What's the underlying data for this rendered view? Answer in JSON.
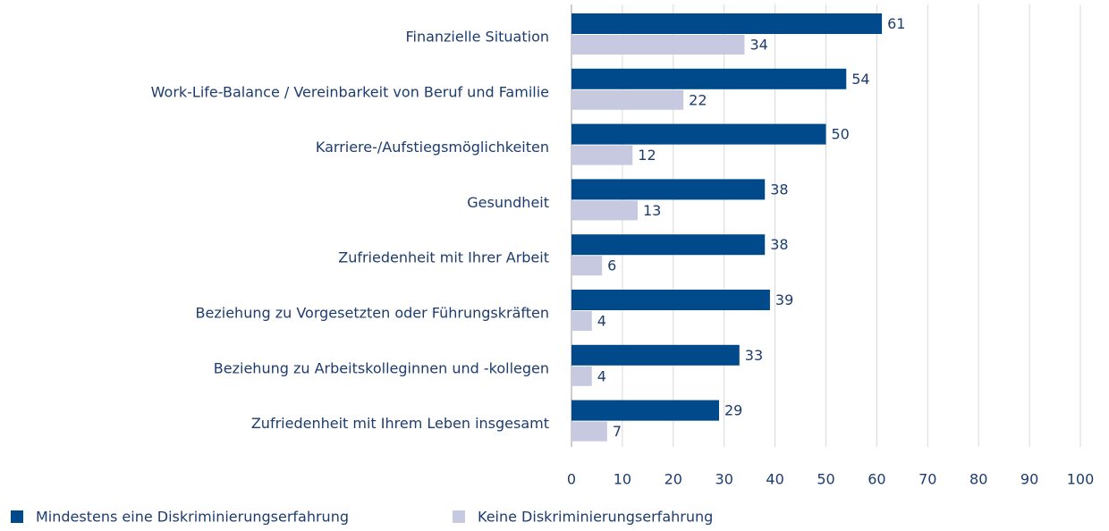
{
  "chart_data": {
    "type": "bar",
    "orientation": "horizontal",
    "categories": [
      "Finanzielle Situation",
      "Work-Life-Balance / Vereinbarkeit von Beruf und Familie",
      "Karriere-/Aufstiegsmöglichkeiten",
      "Gesundheit",
      "Zufriedenheit mit Ihrer Arbeit",
      "Beziehung zu Vorgesetzten oder Führungskräften",
      "Beziehung zu Arbeitskolleginnen und -kollegen",
      "Zufriedenheit mit Ihrem Leben insgesamt"
    ],
    "series": [
      {
        "name": "Mindestens eine Diskriminierungserfahrung",
        "color": "#004a8c",
        "values": [
          61,
          54,
          50,
          38,
          38,
          39,
          33,
          29
        ]
      },
      {
        "name": "Keine Diskriminierungserfahrung",
        "color": "#c6c9df",
        "values": [
          34,
          22,
          12,
          13,
          6,
          4,
          4,
          7
        ]
      }
    ],
    "xlim": [
      0,
      100
    ],
    "xticks": [
      0,
      10,
      20,
      30,
      40,
      50,
      60,
      70,
      80,
      90,
      100
    ],
    "grid": true,
    "legend": "bottom-left"
  }
}
